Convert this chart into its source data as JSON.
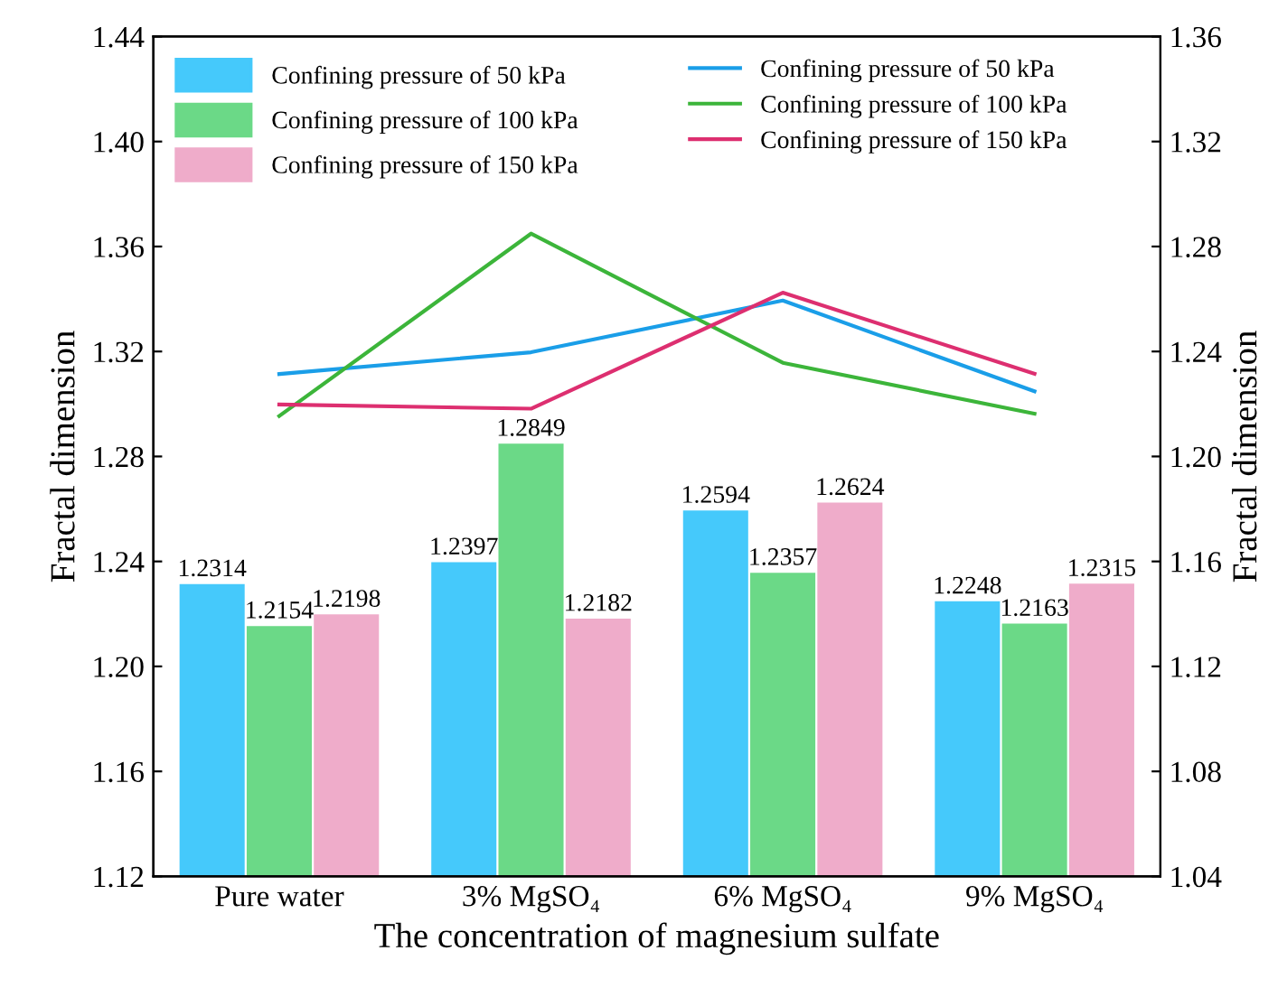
{
  "chart_data": {
    "type": "bar",
    "xlabel": "The concentration of magnesium sulfate",
    "ylabel": "Fractal dimension",
    "y2label": "Fractal dimension",
    "categories": [
      "Pure water",
      "3% MgSO₄",
      "6% MgSO₄",
      "9% MgSO₄"
    ],
    "series": [
      {
        "name": "Confining pressure of 50 kPa",
        "color": "#45c9fb",
        "values": [
          1.2314,
          1.2397,
          1.2594,
          1.2248
        ],
        "value_labels": [
          "1.2314",
          "1.2397",
          "1.2594",
          "1.2248"
        ]
      },
      {
        "name": "Confining pressure of 100 kPa",
        "color": "#6bd987",
        "values": [
          1.2154,
          1.2849,
          1.2357,
          1.2163
        ],
        "value_labels": [
          "1.2154",
          "1.2849",
          "1.2357",
          "1.2163"
        ]
      },
      {
        "name": "Confining pressure of 150 kPa",
        "color": "#efacca",
        "values": [
          1.2198,
          1.2182,
          1.2624,
          1.2315
        ],
        "value_labels": [
          "1.2198",
          "1.2182",
          "1.2624",
          "1.2315"
        ]
      },
      {
        "name": "Confining pressure of 50 kPa",
        "type": "line",
        "axis": "y2",
        "color": "#1a9ee8",
        "values": [
          1.2314,
          1.2397,
          1.2594,
          1.2248
        ]
      },
      {
        "name": "Confining pressure of 100 kPa",
        "type": "line",
        "axis": "y2",
        "color": "#3cb53a",
        "values": [
          1.2154,
          1.2849,
          1.2357,
          1.2163
        ]
      },
      {
        "name": "Confining pressure of 150 kPa",
        "type": "line",
        "axis": "y2",
        "color": "#dd2f70",
        "values": [
          1.2198,
          1.2182,
          1.2624,
          1.2315
        ]
      }
    ],
    "ylim": [
      1.12,
      1.44
    ],
    "yticks": [
      {
        "value": 1.12,
        "label": "1.12"
      },
      {
        "value": 1.16,
        "label": "1.16"
      },
      {
        "value": 1.2,
        "label": "1.20"
      },
      {
        "value": 1.24,
        "label": "1.24"
      },
      {
        "value": 1.28,
        "label": "1.28"
      },
      {
        "value": 1.32,
        "label": "1.32"
      },
      {
        "value": 1.36,
        "label": "1.36"
      },
      {
        "value": 1.4,
        "label": "1.40"
      },
      {
        "value": 1.44,
        "label": "1.44"
      }
    ],
    "y2lim": [
      1.04,
      1.36
    ],
    "y2ticks": [
      {
        "value": 1.04,
        "label": "1.04"
      },
      {
        "value": 1.08,
        "label": "1.08"
      },
      {
        "value": 1.12,
        "label": "1.12"
      },
      {
        "value": 1.16,
        "label": "1.16"
      },
      {
        "value": 1.2,
        "label": "1.20"
      },
      {
        "value": 1.24,
        "label": "1.24"
      },
      {
        "value": 1.28,
        "label": "1.28"
      },
      {
        "value": 1.32,
        "label": "1.32"
      },
      {
        "value": 1.36,
        "label": "1.36"
      }
    ],
    "legend": "top",
    "grid": false,
    "line_style": "solid",
    "marker": "none"
  }
}
